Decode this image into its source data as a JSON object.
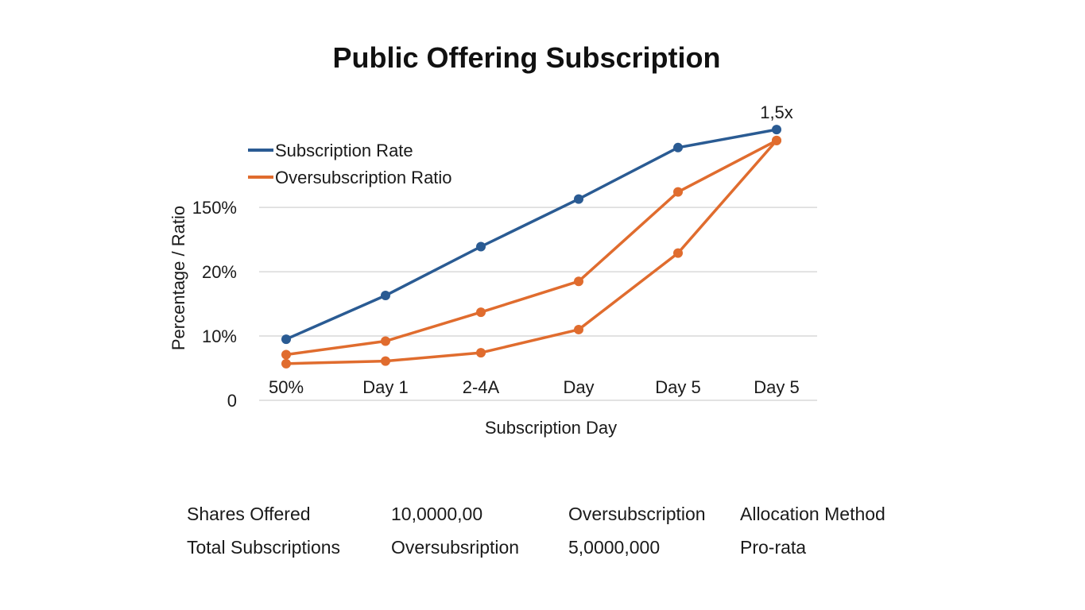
{
  "chart_data": {
    "type": "line",
    "title": "Public Offering Subscription",
    "xlabel": "Subscription Day",
    "ylabel": "Percentage / Ratio",
    "categories": [
      "50%",
      "Day 1",
      "2-4A",
      "Day",
      "Day 5",
      "Day 5"
    ],
    "y_ticks": [
      {
        "label": "0",
        "value": 0
      },
      {
        "label": "10%",
        "value": 1
      },
      {
        "label": "20%",
        "value": 2
      },
      {
        "label": "150%",
        "value": 3
      }
    ],
    "ylim": [
      0,
      4.15
    ],
    "grid": true,
    "legend_position": "top-left",
    "series": [
      {
        "name": "Subscription Rate",
        "color": "#2a5b93",
        "values": [
          0.95,
          1.63,
          2.39,
          3.13,
          3.93,
          4.21
        ]
      },
      {
        "name": "Oversubscription Ratio",
        "color": "#e06c2e",
        "values": [
          0.71,
          0.92,
          1.37,
          1.85,
          3.24,
          4.04
        ]
      },
      {
        "name": "",
        "color": "#e06c2e",
        "values": [
          0.57,
          0.61,
          0.74,
          1.1,
          2.29,
          4.04
        ]
      }
    ],
    "annotations": [
      {
        "text": "1,5x",
        "category_index": 5,
        "series_index": 0,
        "color": "#d0712f"
      }
    ]
  },
  "info_table": {
    "rows": [
      [
        "Shares Offered",
        "10,0000,00",
        "Oversubscription",
        "Allocation Method"
      ],
      [
        "Total Subscriptions",
        "Oversubsription",
        "5,0000,000",
        "Pro-rata"
      ]
    ]
  }
}
